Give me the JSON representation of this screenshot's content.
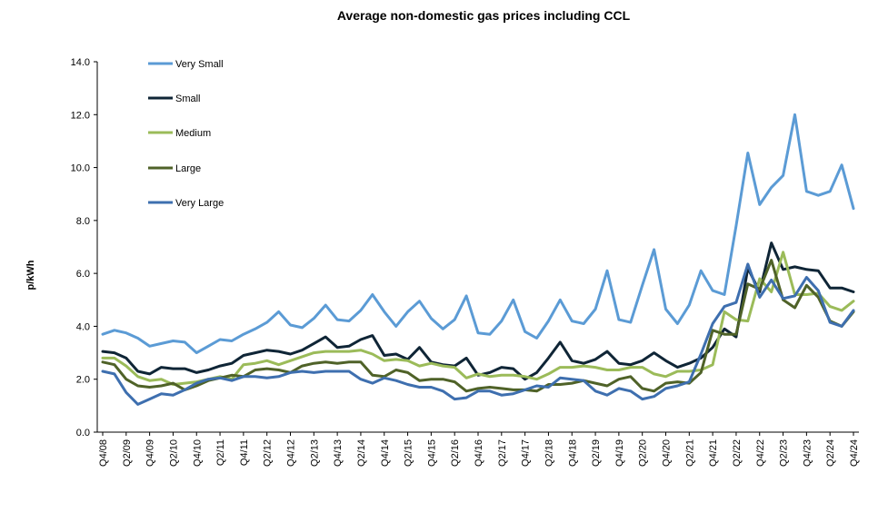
{
  "chart_data": {
    "type": "line",
    "title": "Average non-domestic gas prices including CCL",
    "xlabel": "",
    "ylabel": "p/kWh",
    "ylim": [
      0,
      14
    ],
    "yticks": [
      "0.0",
      "2.0",
      "4.0",
      "6.0",
      "8.0",
      "10.0",
      "12.0",
      "14.0"
    ],
    "legend_position": "top-left",
    "xtick_labels": [
      "Q4/08",
      "Q2/09",
      "Q4/09",
      "Q2/10",
      "Q4/10",
      "Q2/11",
      "Q4/11",
      "Q2/12",
      "Q4/12",
      "Q2/13",
      "Q4/13",
      "Q2/14",
      "Q4/14",
      "Q2/15",
      "Q4/15",
      "Q2/16",
      "Q4/16",
      "Q2/17",
      "Q4/17",
      "Q2/18",
      "Q4/18",
      "Q2/19",
      "Q4/19",
      "Q2/20",
      "Q4/20",
      "Q2/21",
      "Q4/21",
      "Q2/22",
      "Q4/22",
      "Q2/23",
      "Q4/23",
      "Q2/24",
      "Q4/24"
    ],
    "series": [
      {
        "name": "Very Small",
        "color": "#5B9BD5",
        "values": [
          3.7,
          3.85,
          3.75,
          3.55,
          3.25,
          3.35,
          3.45,
          3.4,
          3.0,
          3.25,
          3.5,
          3.45,
          3.7,
          3.9,
          4.15,
          4.55,
          4.05,
          3.95,
          4.3,
          4.8,
          4.25,
          4.2,
          4.6,
          5.2,
          4.55,
          4.0,
          4.55,
          4.95,
          4.3,
          3.9,
          4.25,
          5.15,
          3.75,
          3.7,
          4.2,
          5.0,
          3.8,
          3.55,
          4.2,
          5.0,
          4.2,
          4.1,
          4.65,
          6.1,
          4.25,
          4.15,
          5.55,
          6.9,
          4.65,
          4.1,
          4.8,
          6.1,
          5.35,
          5.2,
          7.8,
          10.55,
          8.6,
          9.25,
          9.7,
          12.0,
          9.1,
          8.95,
          9.1,
          10.1,
          8.45
        ]
      },
      {
        "name": "Small",
        "color": "#0F2536",
        "values": [
          3.05,
          3.0,
          2.8,
          2.3,
          2.2,
          2.45,
          2.4,
          2.4,
          2.25,
          2.35,
          2.5,
          2.6,
          2.9,
          3.0,
          3.1,
          3.05,
          2.95,
          3.1,
          3.35,
          3.6,
          3.2,
          3.25,
          3.5,
          3.65,
          2.9,
          2.95,
          2.75,
          3.2,
          2.65,
          2.55,
          2.5,
          2.8,
          2.15,
          2.25,
          2.45,
          2.4,
          2.0,
          2.25,
          2.8,
          3.4,
          2.7,
          2.6,
          2.75,
          3.05,
          2.6,
          2.55,
          2.7,
          3.0,
          2.7,
          2.45,
          2.6,
          2.8,
          3.2,
          3.9,
          3.6,
          6.2,
          5.3,
          7.15,
          6.15,
          6.25,
          6.15,
          6.1,
          5.45,
          5.45,
          5.3
        ]
      },
      {
        "name": "Medium",
        "color": "#9BBB59",
        "values": [
          2.8,
          2.8,
          2.5,
          2.1,
          1.95,
          2.0,
          1.8,
          1.85,
          1.9,
          2.0,
          2.1,
          2.0,
          2.55,
          2.6,
          2.7,
          2.55,
          2.7,
          2.85,
          3.0,
          3.05,
          3.05,
          3.05,
          3.1,
          2.95,
          2.7,
          2.75,
          2.7,
          2.5,
          2.6,
          2.5,
          2.45,
          2.05,
          2.2,
          2.1,
          2.15,
          2.15,
          2.1,
          2.0,
          2.2,
          2.45,
          2.45,
          2.5,
          2.45,
          2.35,
          2.35,
          2.45,
          2.45,
          2.2,
          2.1,
          2.3,
          2.3,
          2.35,
          2.55,
          4.55,
          4.25,
          4.2,
          5.8,
          5.3,
          6.8,
          5.2,
          5.2,
          5.25,
          4.75,
          4.6,
          4.95
        ]
      },
      {
        "name": "Large",
        "color": "#4F6228",
        "values": [
          2.65,
          2.55,
          2.0,
          1.75,
          1.7,
          1.75,
          1.85,
          1.6,
          1.75,
          1.95,
          2.05,
          2.15,
          2.1,
          2.35,
          2.4,
          2.35,
          2.25,
          2.5,
          2.6,
          2.65,
          2.6,
          2.65,
          2.65,
          2.15,
          2.1,
          2.35,
          2.25,
          1.95,
          2.0,
          2.0,
          1.9,
          1.55,
          1.65,
          1.7,
          1.65,
          1.6,
          1.6,
          1.55,
          1.8,
          1.8,
          1.85,
          1.95,
          1.85,
          1.75,
          2.0,
          2.1,
          1.65,
          1.55,
          1.85,
          1.9,
          1.85,
          2.25,
          3.85,
          3.7,
          3.7,
          5.6,
          5.4,
          6.5,
          5.0,
          4.7,
          5.55,
          5.1,
          4.2,
          4.0,
          4.55
        ]
      },
      {
        "name": "Very Large",
        "color": "#3E6FAF",
        "values": [
          2.3,
          2.2,
          1.5,
          1.05,
          1.25,
          1.45,
          1.4,
          1.6,
          1.85,
          2.0,
          2.05,
          1.95,
          2.1,
          2.1,
          2.05,
          2.1,
          2.25,
          2.3,
          2.25,
          2.3,
          2.3,
          2.3,
          2.0,
          1.85,
          2.05,
          1.95,
          1.8,
          1.7,
          1.7,
          1.55,
          1.25,
          1.3,
          1.55,
          1.55,
          1.4,
          1.45,
          1.6,
          1.75,
          1.7,
          2.05,
          2.0,
          1.95,
          1.55,
          1.4,
          1.65,
          1.55,
          1.25,
          1.35,
          1.65,
          1.75,
          1.9,
          2.95,
          4.1,
          4.75,
          4.9,
          6.35,
          5.1,
          5.75,
          5.05,
          5.15,
          5.85,
          5.35,
          4.15,
          4.0,
          4.6
        ]
      }
    ]
  }
}
